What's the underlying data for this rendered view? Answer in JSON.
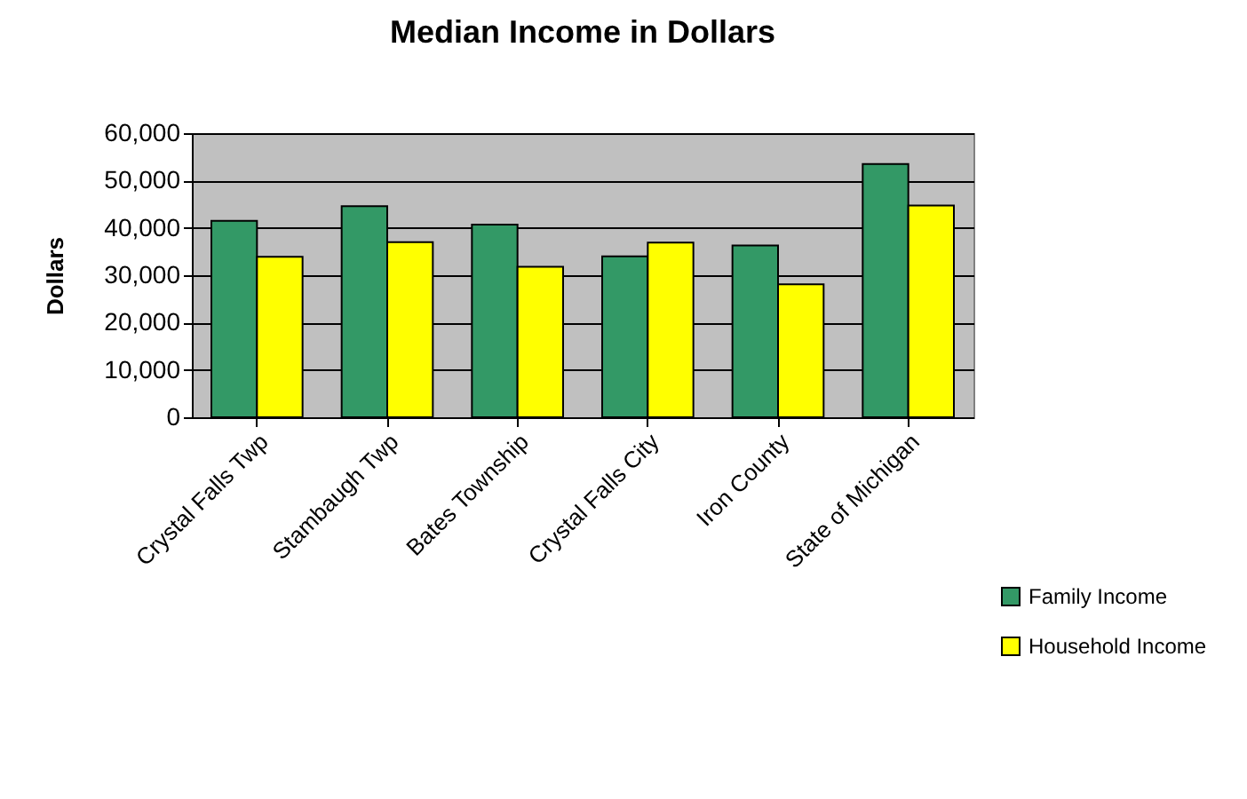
{
  "chart_data": {
    "type": "bar",
    "title": "Median Income in Dollars",
    "ylabel": "Dollars",
    "categories": [
      "Crystal Falls Twp",
      "Stambaugh Twp",
      "Bates Township",
      "Crystal Falls City",
      "Iron County",
      "State of Michigan"
    ],
    "series": [
      {
        "name": "Family Income",
        "color": "#339966",
        "values": [
          41500,
          44600,
          40700,
          34000,
          36300,
          53500
        ]
      },
      {
        "name": "Household Income",
        "color": "#ffff00",
        "values": [
          33900,
          37000,
          31800,
          36900,
          28100,
          44700
        ]
      }
    ],
    "ylim": [
      0,
      60000
    ],
    "yticks": [
      0,
      {
        "value": 10000,
        "label": "10,000"
      },
      {
        "value": 20000,
        "label": "20,000"
      },
      {
        "value": 30000,
        "label": "30,000"
      },
      {
        "value": 40000,
        "label": "40,000"
      },
      {
        "value": 50000,
        "label": "50,000"
      },
      {
        "value": 60000,
        "label": "60,000"
      }
    ],
    "grid": "y",
    "legend": "bottom right"
  }
}
